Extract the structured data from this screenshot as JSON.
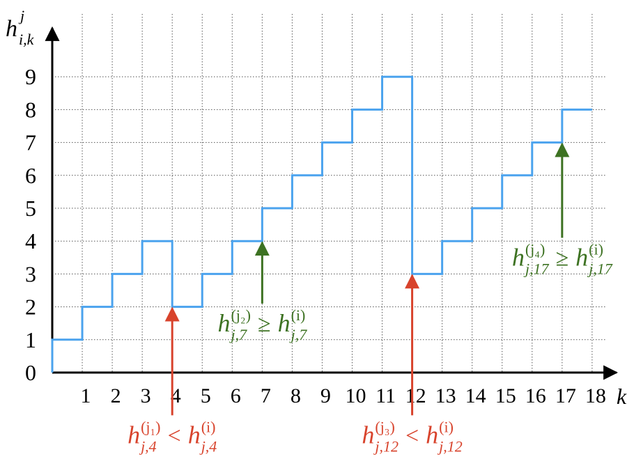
{
  "chart_data": {
    "type": "step",
    "x_label": "k",
    "y_label": {
      "symbol": "h",
      "sup": "j",
      "sub": "i,k"
    },
    "x": [
      0,
      1,
      2,
      3,
      4,
      5,
      6,
      7,
      8,
      9,
      10,
      11,
      12,
      13,
      14,
      15,
      16,
      17,
      18
    ],
    "values": [
      1,
      2,
      3,
      4,
      2,
      3,
      4,
      5,
      6,
      7,
      8,
      9,
      3,
      4,
      5,
      6,
      7,
      8,
      8
    ],
    "color": "#4ba3ee",
    "xlim": [
      0,
      18.7
    ],
    "ylim": [
      0,
      10
    ],
    "xticks": [
      1,
      2,
      3,
      4,
      5,
      6,
      7,
      8,
      9,
      10,
      11,
      12,
      13,
      14,
      15,
      16,
      17,
      18
    ],
    "yticks": [
      0,
      1,
      2,
      3,
      4,
      5,
      6,
      7,
      8,
      9
    ],
    "grid": true,
    "annotations": [
      {
        "symbol": "h",
        "lhs_sup": "(j₁)",
        "sub": "j,4",
        "relation": "<",
        "rhs_sup": "(i)",
        "color": "#d8432c",
        "x": 4,
        "y": 2,
        "from": -1.3
      },
      {
        "symbol": "h",
        "lhs_sup": "(j₂)",
        "sub": "j,7",
        "relation": "≥",
        "rhs_sup": "(i)",
        "color": "#3d7222",
        "x": 7,
        "y": 4,
        "from": 2.1
      },
      {
        "symbol": "h",
        "lhs_sup": "(j₃)",
        "sub": "j,12",
        "relation": "<",
        "rhs_sup": "(i)",
        "color": "#d8432c",
        "x": 12,
        "y": 3,
        "from": -1.3
      },
      {
        "symbol": "h",
        "lhs_sup": "(j₄)",
        "sub": "j,17",
        "relation": "≥",
        "rhs_sup": "(i)",
        "color": "#3d7222",
        "x": 17,
        "y": 7,
        "from": 4.1
      }
    ]
  }
}
